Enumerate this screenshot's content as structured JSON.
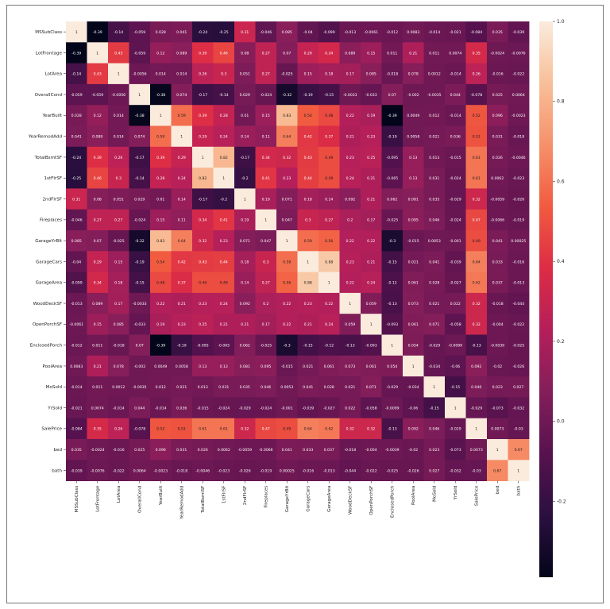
{
  "chart_data": {
    "type": "heatmap",
    "labels": [
      "MSSubClass",
      "LotFrontage",
      "LotArea",
      "OverallCond",
      "YearBuilt",
      "YearRemodAdd",
      "TotalBsmtSF",
      "1stFlrSF",
      "2ndFlrSF",
      "Fireplaces",
      "GarageYrBlt",
      "GarageCars",
      "GarageArea",
      "WoodDeckSF",
      "OpenPorchSF",
      "EnclosedPorch",
      "PoolArea",
      "MoSold",
      "YrSold",
      "SalePrice",
      "bed",
      "bath"
    ],
    "matrix": [
      [
        "1",
        "-0.39",
        "-0.14",
        "-0.059",
        "0.028",
        "0.041",
        "-0.24",
        "-0.25",
        "0.31",
        "-0.046",
        "0.085",
        "-0.04",
        "-0.099",
        "-0.013",
        "-0.0061",
        "-0.012",
        "0.0083",
        "-0.014",
        "-0.021",
        "-0.084",
        "0.035",
        "-0.039"
      ],
      [
        "-0.39",
        "1",
        "0.43",
        "-0.059",
        "0.12",
        "0.089",
        "0.39",
        "0.46",
        "0.08",
        "0.27",
        "0.07",
        "0.29",
        "0.34",
        "0.089",
        "0.15",
        "0.011",
        "0.21",
        "0.011",
        "0.0074",
        "0.35",
        "-0.0024",
        "-0.0076"
      ],
      [
        "-0.14",
        "0.43",
        "1",
        "-0.0056",
        "0.014",
        "0.014",
        "0.26",
        "0.3",
        "0.051",
        "0.27",
        "-0.025",
        "0.15",
        "0.18",
        "0.17",
        "0.085",
        "-0.018",
        "0.078",
        "0.0012",
        "-0.014",
        "0.26",
        "-0.016",
        "-0.022"
      ],
      [
        "-0.059",
        "-0.059",
        "-0.0056",
        "1",
        "-0.38",
        "0.074",
        "-0.17",
        "-0.14",
        "0.029",
        "-0.024",
        "-0.32",
        "-0.19",
        "-0.15",
        "-0.0033",
        "-0.033",
        "0.07",
        "-0.002",
        "-0.0035",
        "0.044",
        "-0.078",
        "0.025",
        "0.0064"
      ],
      [
        "0.028",
        "0.12",
        "0.014",
        "-0.38",
        "1",
        "0.59",
        "0.39",
        "0.28",
        "0.01",
        "0.15",
        "0.83",
        "0.54",
        "0.48",
        "0.22",
        "0.19",
        "-0.39",
        "0.0049",
        "0.012",
        "-0.014",
        "0.52",
        "0.096",
        "-0.0023"
      ],
      [
        "0.041",
        "0.089",
        "0.014",
        "0.074",
        "0.59",
        "1",
        "0.29",
        "0.24",
        "0.14",
        "0.11",
        "0.64",
        "0.42",
        "0.37",
        "0.21",
        "0.23",
        "-0.19",
        "0.0058",
        "0.021",
        "0.036",
        "0.51",
        "0.031",
        "-0.018"
      ],
      [
        "-0.24",
        "0.39",
        "0.26",
        "-0.17",
        "0.39",
        "0.29",
        "1",
        "0.82",
        "-0.17",
        "0.34",
        "0.32",
        "0.43",
        "0.49",
        "0.23",
        "0.25",
        "-0.095",
        "0.13",
        "0.013",
        "-0.015",
        "0.61",
        "0.026",
        "-0.0046"
      ],
      [
        "-0.25",
        "0.46",
        "0.3",
        "-0.14",
        "0.28",
        "0.24",
        "0.82",
        "1",
        "-0.2",
        "0.41",
        "0.23",
        "0.44",
        "0.49",
        "0.24",
        "0.21",
        "-0.065",
        "0.13",
        "0.031",
        "-0.024",
        "0.61",
        "0.0062",
        "-0.023"
      ],
      [
        "0.31",
        "0.08",
        "0.051",
        "0.029",
        "0.01",
        "0.14",
        "-0.17",
        "-0.2",
        "1",
        "0.19",
        "0.071",
        "0.18",
        "0.14",
        "0.092",
        "0.21",
        "0.062",
        "0.081",
        "0.035",
        "-0.029",
        "0.32",
        "-0.0059",
        "-0.026"
      ],
      [
        "-0.046",
        "0.27",
        "0.27",
        "-0.024",
        "0.15",
        "0.11",
        "0.34",
        "0.41",
        "0.19",
        "1",
        "0.047",
        "0.3",
        "0.27",
        "0.2",
        "0.17",
        "-0.025",
        "0.095",
        "0.046",
        "-0.024",
        "0.47",
        "-0.0066",
        "-0.019"
      ],
      [
        "0.085",
        "0.07",
        "-0.025",
        "-0.32",
        "0.83",
        "0.64",
        "0.32",
        "0.23",
        "0.071",
        "0.047",
        "1",
        "0.59",
        "0.56",
        "0.22",
        "0.22",
        "-0.3",
        "-0.015",
        "0.0053",
        "-0.001",
        "0.49",
        "0.041",
        "0.00025"
      ],
      [
        "-0.04",
        "0.29",
        "0.15",
        "-0.19",
        "0.54",
        "0.42",
        "0.43",
        "0.44",
        "0.18",
        "0.3",
        "0.59",
        "1",
        "0.88",
        "0.23",
        "0.21",
        "-0.15",
        "0.021",
        "0.041",
        "-0.039",
        "0.64",
        "0.033",
        "-0.016"
      ],
      [
        "-0.099",
        "0.34",
        "0.18",
        "-0.15",
        "0.48",
        "0.37",
        "0.49",
        "0.49",
        "0.14",
        "0.27",
        "0.56",
        "0.88",
        "1",
        "0.22",
        "0.24",
        "-0.12",
        "0.061",
        "0.028",
        "-0.027",
        "0.62",
        "0.037",
        "-0.013"
      ],
      [
        "-0.013",
        "0.089",
        "0.17",
        "-0.0033",
        "0.22",
        "0.21",
        "0.23",
        "0.24",
        "0.092",
        "0.2",
        "0.22",
        "0.23",
        "0.22",
        "1",
        "0.059",
        "-0.13",
        "0.073",
        "0.021",
        "0.022",
        "0.32",
        "-0.018",
        "-0.044"
      ],
      [
        "-0.0061",
        "0.15",
        "0.085",
        "-0.033",
        "0.19",
        "0.23",
        "0.25",
        "0.21",
        "0.21",
        "0.17",
        "0.22",
        "0.21",
        "0.24",
        "0.059",
        "1",
        "-0.093",
        "0.061",
        "0.071",
        "-0.058",
        "0.32",
        "-0.004",
        "-0.022"
      ],
      [
        "-0.012",
        "0.011",
        "-0.018",
        "0.07",
        "-0.39",
        "-0.19",
        "-0.095",
        "-0.065",
        "0.062",
        "-0.025",
        "-0.3",
        "-0.15",
        "-0.12",
        "-0.13",
        "-0.093",
        "1",
        "0.054",
        "-0.029",
        "-0.0099",
        "-0.13",
        "-0.0039",
        "-0.025"
      ],
      [
        "0.0083",
        "0.21",
        "0.078",
        "-0.002",
        "0.0049",
        "0.0058",
        "0.13",
        "0.13",
        "0.081",
        "0.095",
        "-0.015",
        "0.021",
        "0.061",
        "0.073",
        "0.061",
        "0.054",
        "1",
        "-0.034",
        "-0.06",
        "0.092",
        "-0.02",
        "-0.026"
      ],
      [
        "-0.014",
        "0.011",
        "0.0012",
        "-0.0035",
        "0.012",
        "0.021",
        "0.013",
        "0.031",
        "0.035",
        "0.046",
        "0.0053",
        "0.041",
        "0.028",
        "0.021",
        "0.071",
        "-0.029",
        "-0.034",
        "1",
        "-0.15",
        "0.046",
        "0.023",
        "0.027"
      ],
      [
        "-0.021",
        "0.0074",
        "-0.014",
        "0.044",
        "-0.014",
        "0.036",
        "-0.015",
        "-0.024",
        "-0.029",
        "-0.024",
        "-0.001",
        "-0.039",
        "-0.027",
        "0.022",
        "-0.058",
        "-0.0099",
        "-0.06",
        "-0.15",
        "1",
        "-0.029",
        "-0.073",
        "-0.032"
      ],
      [
        "-0.084",
        "0.35",
        "0.26",
        "-0.078",
        "0.52",
        "0.51",
        "0.61",
        "0.61",
        "0.32",
        "0.47",
        "0.49",
        "0.64",
        "0.62",
        "0.32",
        "0.32",
        "-0.13",
        "0.092",
        "0.046",
        "-0.029",
        "1",
        "0.0073",
        "-0.03"
      ],
      [
        "0.035",
        "-0.0024",
        "-0.016",
        "0.025",
        "0.096",
        "0.031",
        "0.026",
        "0.0062",
        "-0.0059",
        "-0.0066",
        "0.041",
        "0.033",
        "0.037",
        "-0.018",
        "-0.004",
        "-0.0039",
        "-0.02",
        "0.023",
        "-0.073",
        "0.0073",
        "1",
        "0.67"
      ],
      [
        "-0.039",
        "-0.0076",
        "-0.022",
        "0.0064",
        "-0.0023",
        "-0.018",
        "-0.0046",
        "-0.023",
        "-0.026",
        "-0.019",
        "0.00025",
        "-0.016",
        "-0.013",
        "-0.044",
        "-0.022",
        "-0.025",
        "-0.026",
        "0.027",
        "-0.032",
        "-0.03",
        "0.67",
        "1"
      ]
    ],
    "vmin": -0.39,
    "vmax": 1.0,
    "colorbar_ticks": [
      "1.0",
      "0.8",
      "0.6",
      "0.4",
      "0.2",
      "0.0",
      "-0.2"
    ],
    "colormap": [
      "#03051a",
      "#2b0f3f",
      "#57124e",
      "#841e5a",
      "#b41f5a",
      "#dd2c45",
      "#f15b3f",
      "#f6916a",
      "#f8bf98",
      "#faebdd"
    ],
    "title": "",
    "xlabel": "",
    "ylabel": "",
    "legend": "colorbar-right",
    "grid": false
  }
}
